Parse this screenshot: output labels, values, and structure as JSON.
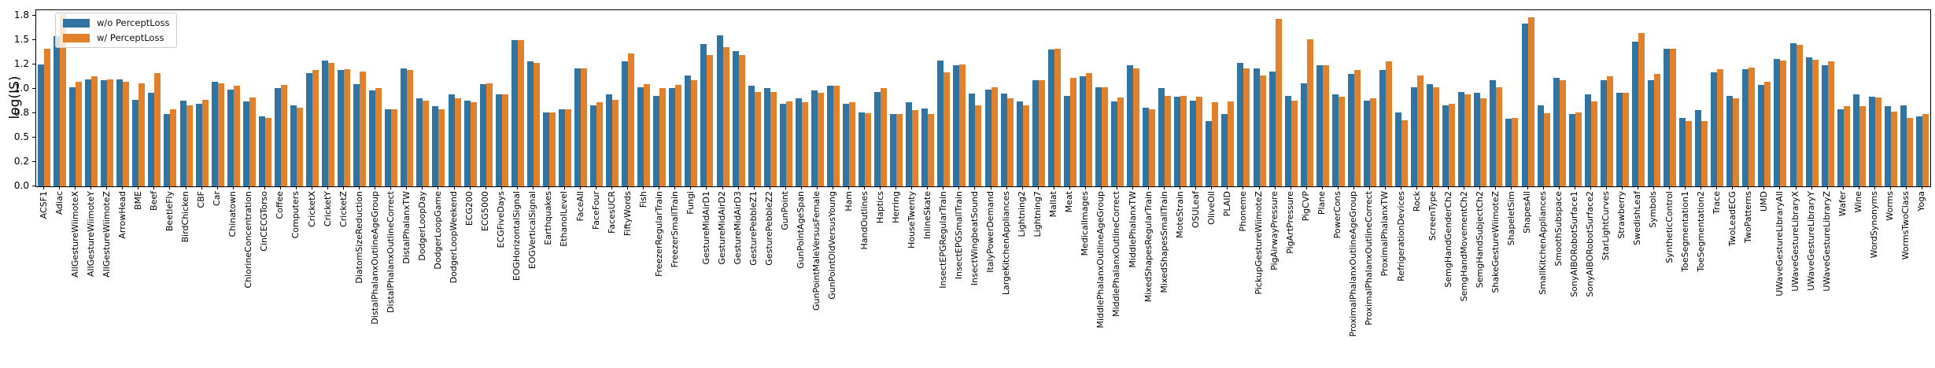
{
  "chart_data": {
    "type": "bar",
    "title": "",
    "xlabel": "",
    "ylabel": "log(IS)",
    "grid": false,
    "frame": true,
    "bar_orientation": "vertical",
    "legend": {
      "position": "upper left",
      "entries": [
        "w/o PerceptLoss",
        "w/ PerceptLoss"
      ]
    },
    "y_axis": {
      "ylim": [
        0,
        1.81
      ],
      "tick_values": [
        0,
        0.25,
        0.5,
        0.75,
        1.0,
        1.25,
        1.5,
        1.75
      ],
      "tick_labels": [
        "0.0",
        "0.2",
        "0.5",
        "0.8",
        "1.0",
        "1.2",
        "1.5",
        "1.8"
      ]
    },
    "categories": [
      "ACSF1",
      "Adiac",
      "AllGestureWiimoteX",
      "AllGestureWiimoteY",
      "AllGestureWiimoteZ",
      "ArrowHead",
      "BME",
      "Beef",
      "BeetleFly",
      "BirdChicken",
      "CBF",
      "Car",
      "Chinatown",
      "ChlorineConcentration",
      "CinCECGTorso",
      "Coffee",
      "Computers",
      "CricketX",
      "CricketY",
      "CricketZ",
      "DiatomSizeReduction",
      "DistalPhalanxOutlineAgeGroup",
      "DistalPhalanxOutlineCorrect",
      "DistalPhalanxTW",
      "DodgerLoopDay",
      "DodgerLoopGame",
      "DodgerLoopWeekend",
      "ECG200",
      "ECG5000",
      "ECGFiveDays",
      "EOGHorizontalSignal",
      "EOGVerticalSignal",
      "Earthquakes",
      "EthanolLevel",
      "FaceAll",
      "FaceFour",
      "FacesUCR",
      "FiftyWords",
      "Fish",
      "FreezerRegularTrain",
      "FreezerSmallTrain",
      "Fungi",
      "GestureMidAirD1",
      "GestureMidAirD2",
      "GestureMidAirD3",
      "GesturePebbleZ1",
      "GesturePebbleZ2",
      "GunPoint",
      "GunPointAgeSpan",
      "GunPointMaleVersusFemale",
      "GunPointOldVersusYoung",
      "Ham",
      "HandOutlines",
      "Haptics",
      "Herring",
      "HouseTwenty",
      "InlineSkate",
      "InsectEPGRegularTrain",
      "InsectEPGSmallTrain",
      "InsectWingbeatSound",
      "ItalyPowerDemand",
      "LargeKitchenAppliances",
      "Lightning2",
      "Lightning7",
      "Mallat",
      "Meat",
      "MedicalImages",
      "MiddlePhalanxOutlineAgeGroup",
      "MiddlePhalanxOutlineCorrect",
      "MiddlePhalanxTW",
      "MixedShapesRegularTrain",
      "MixedShapesSmallTrain",
      "MoteStrain",
      "OSULeaf",
      "OliveOil",
      "PLAID",
      "Phoneme",
      "PickupGestureWiimoteZ",
      "PigAirwayPressure",
      "PigArtPressure",
      "PigCVP",
      "Plane",
      "PowerCons",
      "ProximalPhalanxOutlineAgeGroup",
      "ProximalPhalanxOutlineCorrect",
      "ProximalPhalanxTW",
      "RefrigerationDevices",
      "Rock",
      "ScreenType",
      "SemgHandGenderCh2",
      "SemgHandMovementCh2",
      "SemgHandSubjectCh2",
      "ShakeGestureWiimoteZ",
      "ShapeletSim",
      "ShapesAll",
      "SmallKitchenAppliances",
      "SmoothSubspace",
      "SonyAIBORobotSurface1",
      "SonyAIBORobotSurface2",
      "StarLightCurves",
      "Strawberry",
      "SwedishLeaf",
      "Symbols",
      "SyntheticControl",
      "ToeSegmentation1",
      "ToeSegmentation2",
      "Trace",
      "TwoLeadECG",
      "TwoPatterns",
      "UMD",
      "UWaveGestureLibraryAll",
      "UWaveGestureLibraryX",
      "UWaveGestureLibraryY",
      "UWaveGestureLibraryZ",
      "Wafer",
      "Wine",
      "WordSynonyms",
      "Worms",
      "WormsTwoClass",
      "Yoga"
    ],
    "series": [
      {
        "name": "w/o PerceptLoss",
        "color": "#3274a1",
        "values": [
          1.25,
          1.54,
          1.02,
          1.1,
          1.09,
          1.1,
          0.89,
          0.96,
          0.74,
          0.88,
          0.85,
          1.07,
          0.99,
          0.87,
          0.72,
          1.01,
          0.83,
          1.16,
          1.29,
          1.19,
          1.05,
          0.98,
          0.79,
          1.21,
          0.9,
          0.82,
          0.94,
          0.88,
          1.05,
          0.94,
          1.5,
          1.28,
          0.76,
          0.79,
          1.21,
          0.83,
          0.94,
          1.28,
          1.02,
          0.93,
          1.01,
          1.14,
          1.46,
          1.55,
          1.39,
          1.03,
          1.01,
          0.85,
          0.9,
          0.98,
          1.03,
          0.85,
          0.76,
          0.97,
          0.74,
          0.86,
          0.8,
          1.29,
          1.24,
          0.95,
          0.99,
          0.95,
          0.87,
          1.09,
          1.4,
          0.93,
          1.13,
          1.02,
          0.87,
          1.24,
          0.81,
          1.01,
          0.92,
          0.88,
          0.67,
          0.74,
          1.27,
          1.21,
          1.18,
          0.93,
          1.06,
          1.24,
          0.94,
          1.15,
          0.88,
          1.19,
          0.76,
          1.02,
          1.05,
          0.83,
          0.97,
          0.96,
          1.09,
          0.69,
          1.67,
          0.83,
          1.11,
          0.74,
          0.94,
          1.09,
          0.96,
          1.48,
          1.09,
          1.41,
          0.7,
          0.78,
          1.17,
          0.93,
          1.2,
          1.04,
          1.31,
          1.47,
          1.32,
          1.24,
          0.79,
          0.94,
          0.92,
          0.82,
          0.83,
          0.72
        ]
      },
      {
        "name": "w/ PerceptLoss",
        "color": "#e1812c",
        "values": [
          1.41,
          1.77,
          1.07,
          1.13,
          1.1,
          1.07,
          1.06,
          1.16,
          0.79,
          0.83,
          0.89,
          1.06,
          1.03,
          0.91,
          0.7,
          1.04,
          0.81,
          1.19,
          1.27,
          1.2,
          1.18,
          1.01,
          0.79,
          1.19,
          0.88,
          0.79,
          0.9,
          0.86,
          1.06,
          0.94,
          1.5,
          1.27,
          0.76,
          0.79,
          1.21,
          0.86,
          0.89,
          1.36,
          1.05,
          1.01,
          1.04,
          1.09,
          1.35,
          1.43,
          1.35,
          0.97,
          0.97,
          0.87,
          0.86,
          0.96,
          1.03,
          0.86,
          0.75,
          1.01,
          0.74,
          0.78,
          0.74,
          1.17,
          1.25,
          0.83,
          1.02,
          0.9,
          0.83,
          1.09,
          1.41,
          1.11,
          1.16,
          1.02,
          0.91,
          1.21,
          0.79,
          0.93,
          0.93,
          0.92,
          0.86,
          0.87,
          1.21,
          1.14,
          1.72,
          0.88,
          1.51,
          1.24,
          0.92,
          1.19,
          0.9,
          1.28,
          0.68,
          1.14,
          1.02,
          0.85,
          0.94,
          0.9,
          1.02,
          0.7,
          1.73,
          0.75,
          1.09,
          0.76,
          0.87,
          1.13,
          0.96,
          1.57,
          1.15,
          1.41,
          0.67,
          0.67,
          1.2,
          0.9,
          1.22,
          1.07,
          1.29,
          1.45,
          1.3,
          1.28,
          0.82,
          0.82,
          0.91,
          0.77,
          0.7,
          0.74
        ]
      }
    ]
  }
}
